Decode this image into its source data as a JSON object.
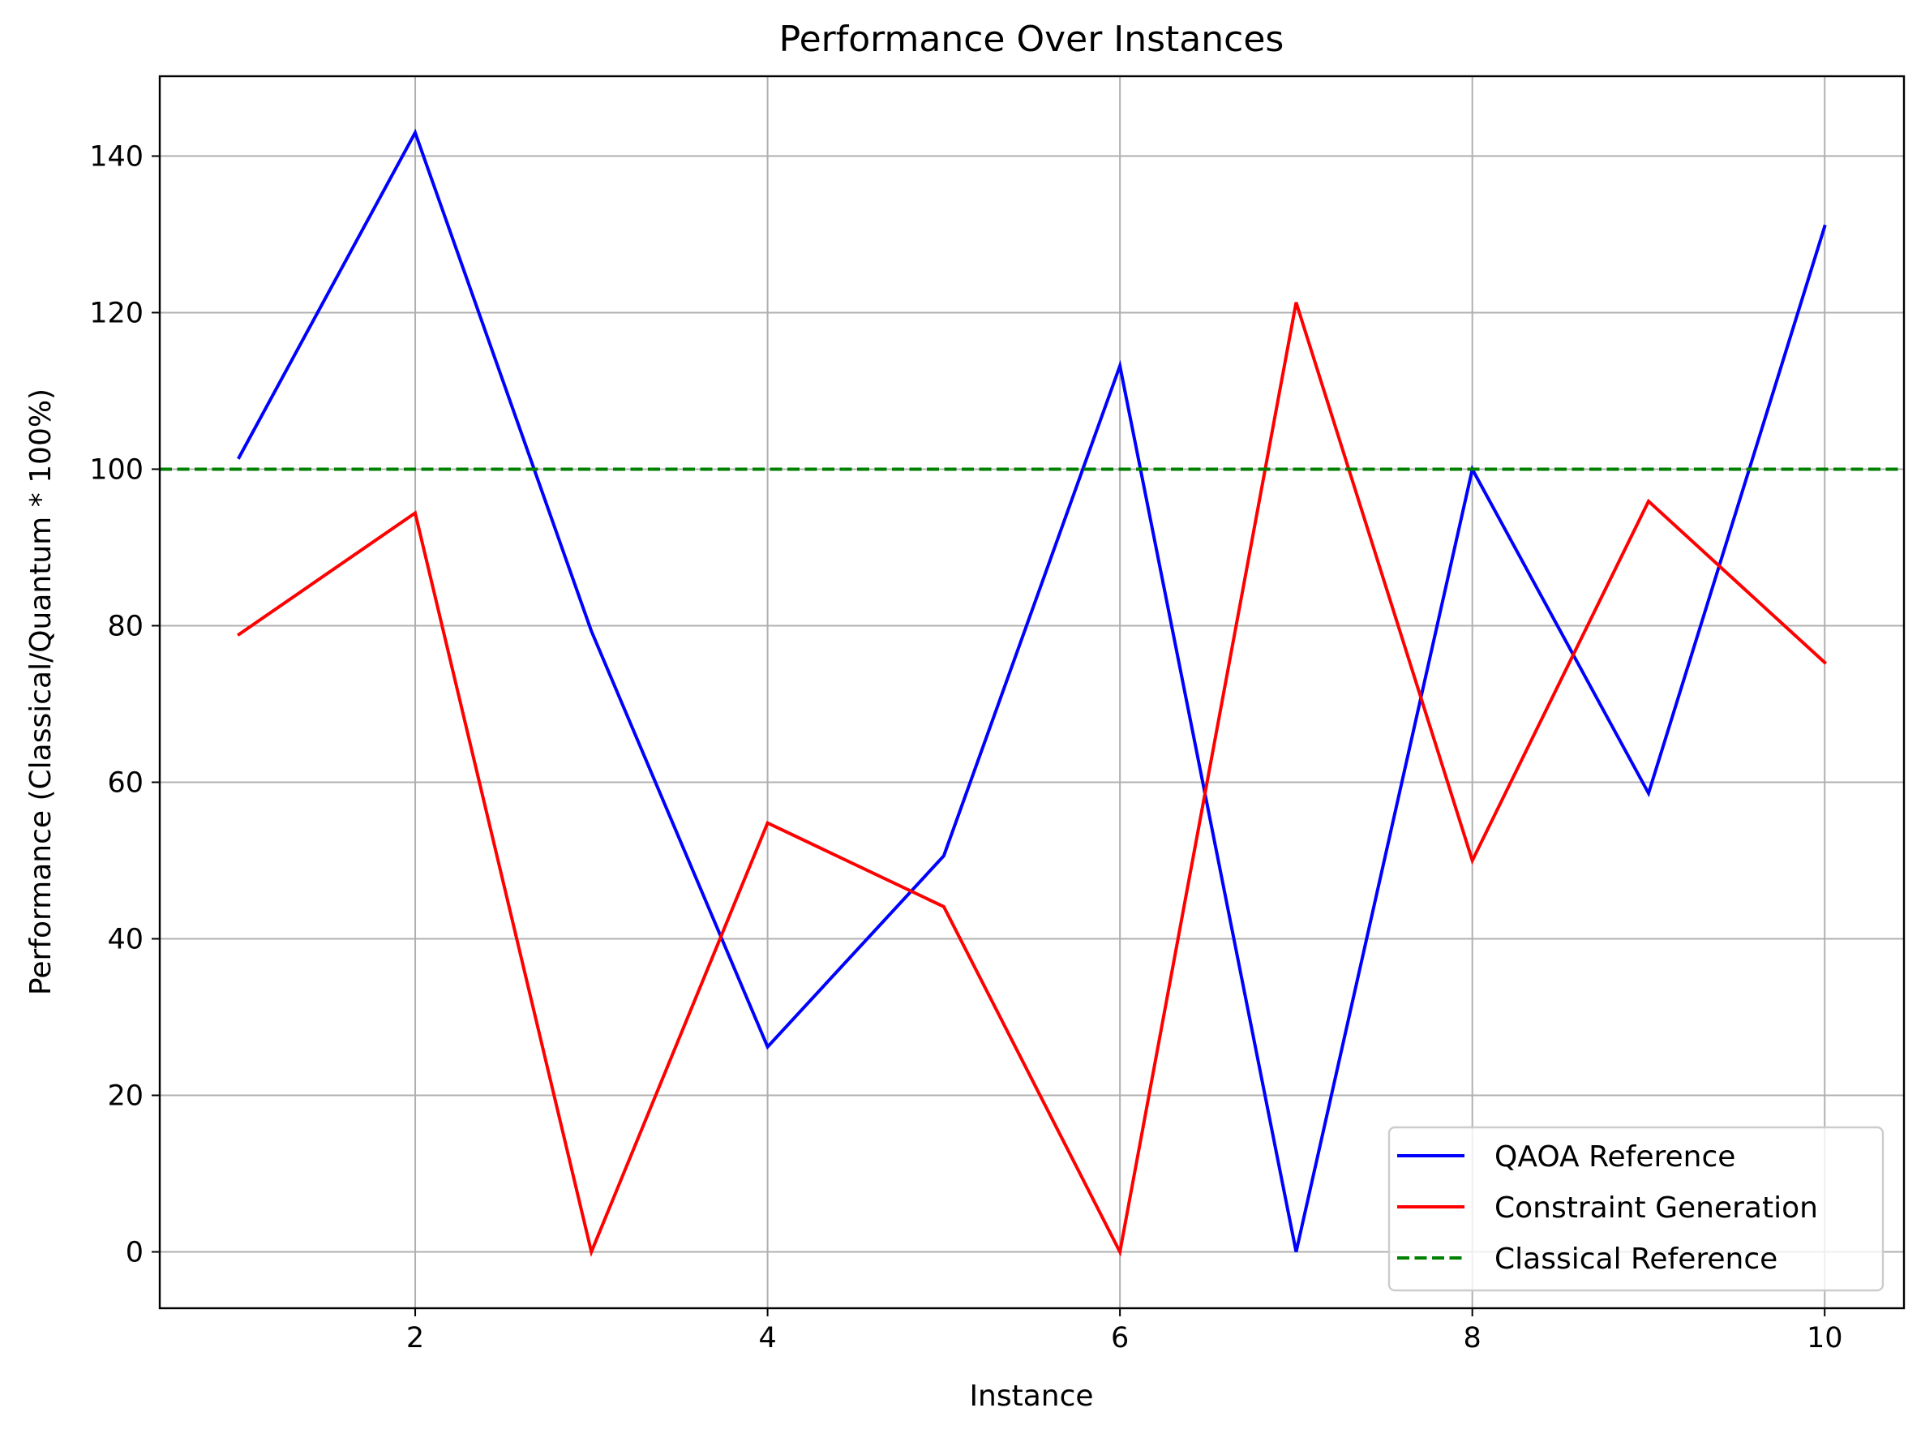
{
  "chart_data": {
    "type": "line",
    "title": "Performance Over Instances",
    "xlabel": "Instance",
    "ylabel": "Performance (Classical/Quantum * 100%)",
    "x": [
      1,
      2,
      3,
      4,
      5,
      6,
      7,
      8,
      9,
      10
    ],
    "xlim": [
      0.55,
      10.45
    ],
    "ylim": [
      -7.2,
      150.2
    ],
    "xticks": [
      2,
      4,
      6,
      8,
      10
    ],
    "xtick_labels": [
      "2",
      "4",
      "6",
      "8",
      "10"
    ],
    "yticks": [
      0,
      20,
      40,
      60,
      80,
      100,
      120,
      140
    ],
    "ytick_labels": [
      "0",
      "20",
      "40",
      "60",
      "80",
      "100",
      "120",
      "140"
    ],
    "grid": true,
    "legend_position": "lower-right",
    "series": [
      {
        "name": "QAOA Reference",
        "color": "#0000ff",
        "style": "solid",
        "values": [
          101.5,
          143.0,
          79.3,
          26.2,
          50.6,
          113.2,
          0.0,
          100.0,
          58.6,
          131.0
        ]
      },
      {
        "name": "Constraint Generation",
        "color": "#ff0000",
        "style": "solid",
        "values": [
          78.9,
          94.4,
          0.0,
          54.8,
          44.1,
          0.0,
          121.3,
          50.0,
          95.9,
          75.3
        ]
      },
      {
        "name": "Classical Reference",
        "color": "#008000",
        "style": "dashed",
        "values": [
          100,
          100,
          100,
          100,
          100,
          100,
          100,
          100,
          100,
          100
        ]
      }
    ]
  }
}
